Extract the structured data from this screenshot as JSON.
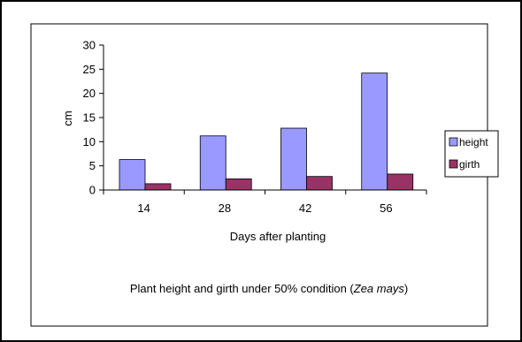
{
  "chart_data": {
    "type": "bar",
    "categories": [
      "14",
      "28",
      "42",
      "56"
    ],
    "series": [
      {
        "name": "height",
        "values": [
          6.3,
          11.2,
          12.8,
          24.2
        ],
        "color": "#9999FF"
      },
      {
        "name": "girth",
        "values": [
          1.3,
          2.3,
          2.8,
          3.3
        ],
        "color": "#993366"
      }
    ],
    "y_ticks": [
      "0",
      "5",
      "10",
      "15",
      "20",
      "25",
      "30"
    ],
    "ylim": [
      0,
      30
    ],
    "xlabel": "Days after planting",
    "ylabel": "cm",
    "title_prefix": "Plant height and girth under 50% condition (",
    "title_italic": "Zea mays",
    "title_suffix": ")",
    "legend_position": "right",
    "grid": false
  }
}
